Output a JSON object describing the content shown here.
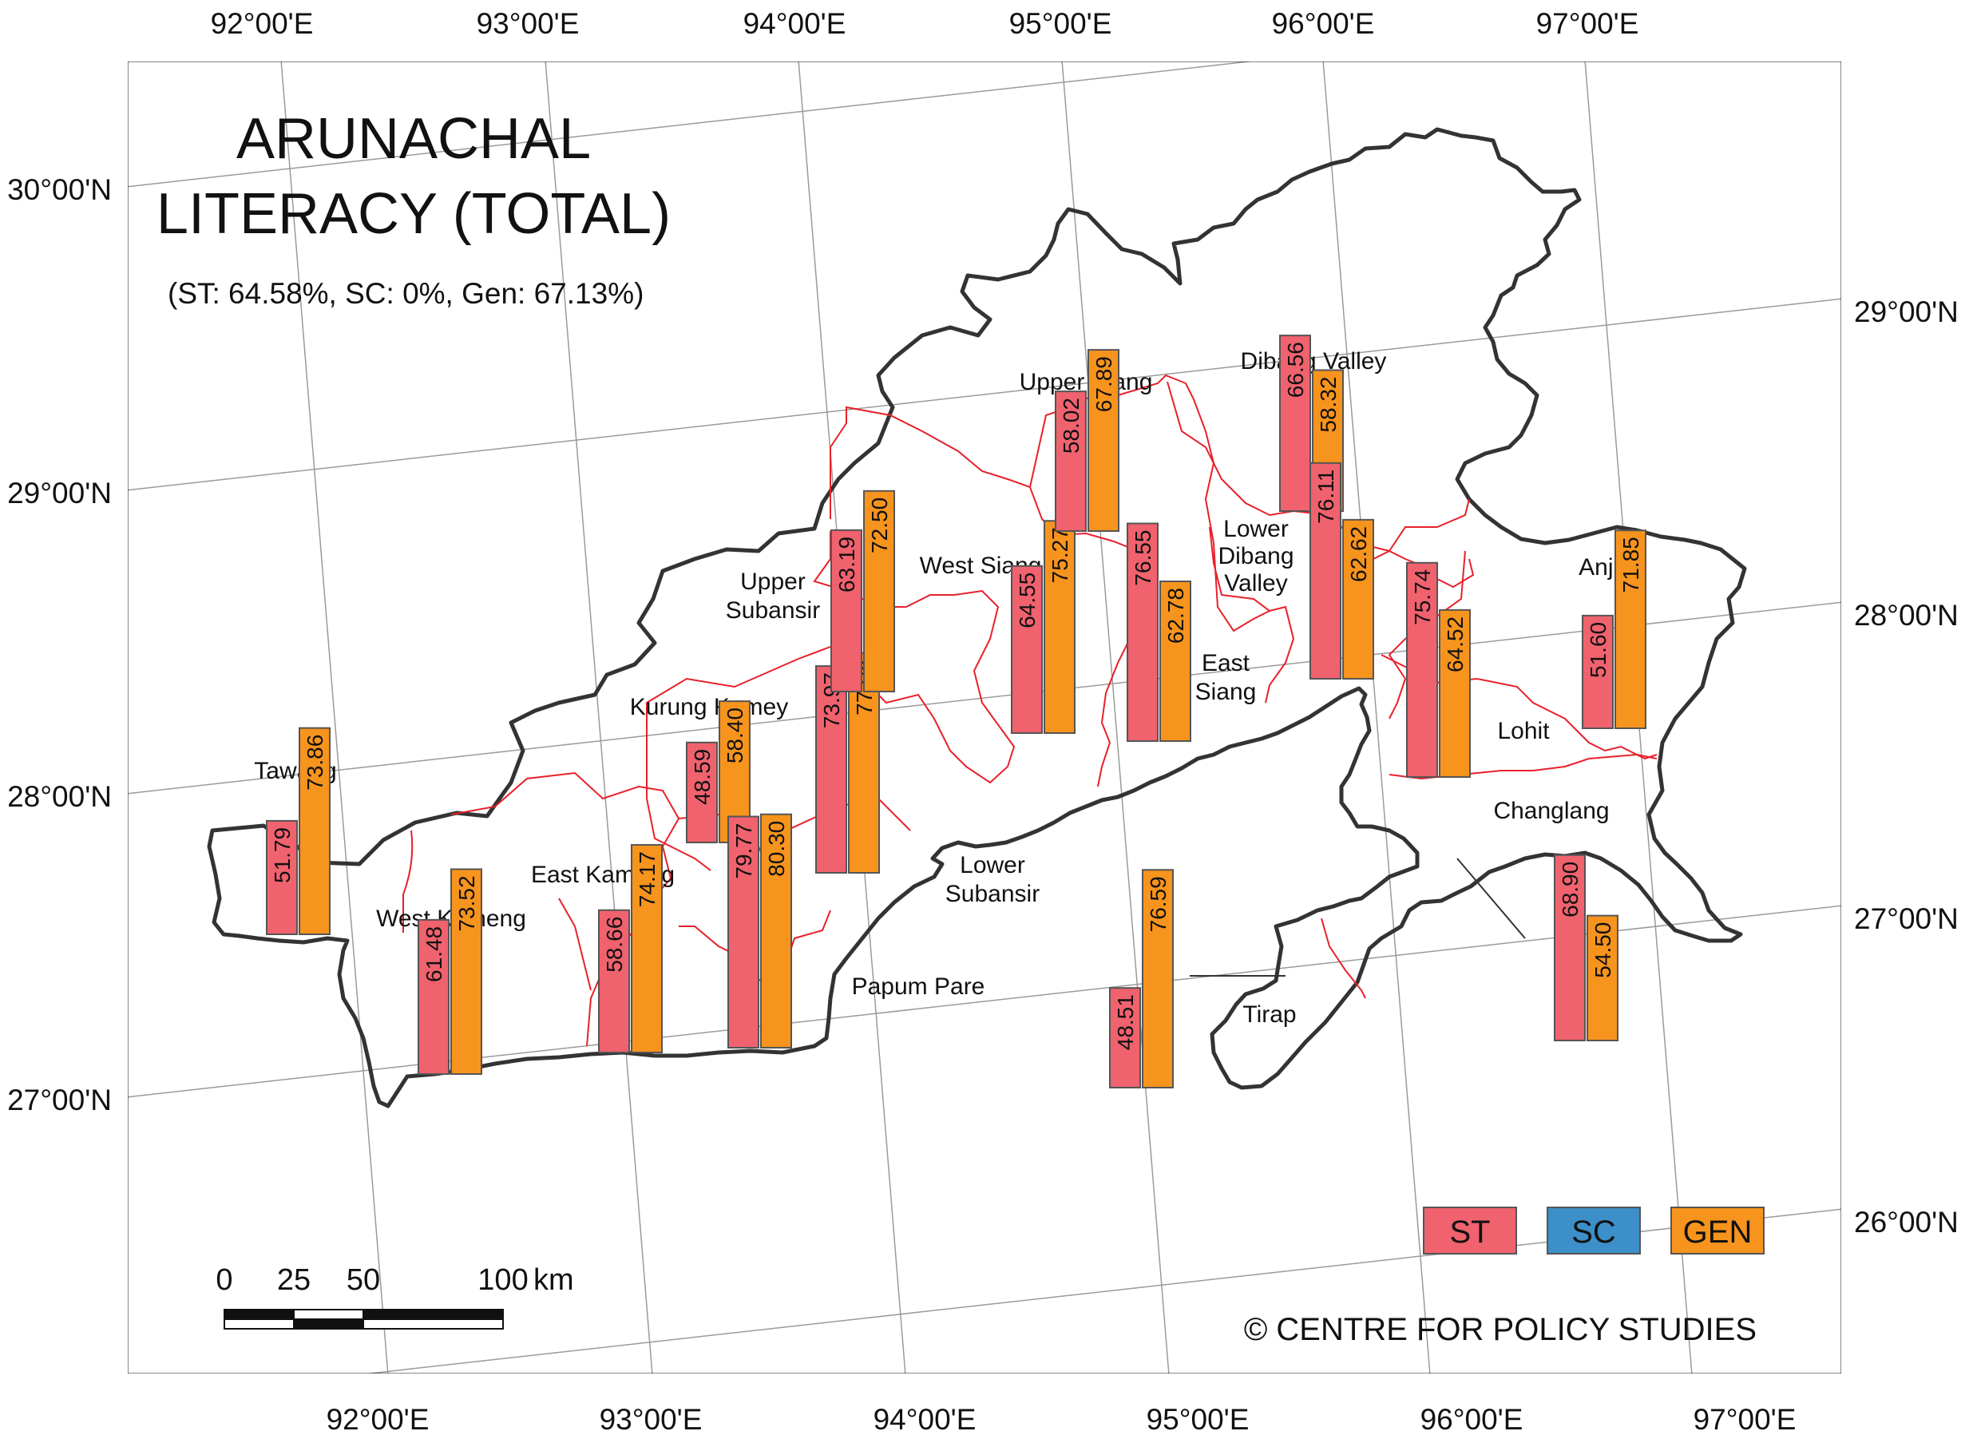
{
  "title": [
    "ARUNACHAL",
    "LITERACY (TOTAL)"
  ],
  "subtitle": "(ST: 64.58%, SC: 0%, Gen: 67.13%)",
  "colors": {
    "st": "#f0626e",
    "sc": "#3c8fc8",
    "gen": "#f7941d",
    "border": "#333333",
    "district_border": "#e8202a",
    "graticule": "#9a9a9a"
  },
  "longitude_labels_top": [
    "92°00'E",
    "93°00'E",
    "94°00'E",
    "95°00'E",
    "96°00'E",
    "97°00'E"
  ],
  "longitude_labels_bottom": [
    "92°00'E",
    "93°00'E",
    "94°00'E",
    "95°00'E",
    "96°00'E",
    "97°00'E"
  ],
  "latitude_labels_left": [
    "30°00'N",
    "29°00'N",
    "28°00'N",
    "27°00'N"
  ],
  "latitude_labels_right": [
    "29°00'N",
    "28°00'N",
    "27°00'N",
    "26°00'N"
  ],
  "districts": [
    {
      "name": "Tawang",
      "label": [
        "Tawang"
      ],
      "st": "51.79",
      "gen": "73.86"
    },
    {
      "name": "West Kameng",
      "label": [
        "West Kameng"
      ],
      "st": "61.48",
      "gen": "73.52"
    },
    {
      "name": "East Kameng",
      "label": [
        "East Kameng"
      ],
      "st": "58.66",
      "gen": "74.17"
    },
    {
      "name": "Kurung Kumey",
      "label": [
        "Kurung Kumey"
      ],
      "st": "48.59",
      "gen": "58.40"
    },
    {
      "name": "Papum Pare",
      "label": [
        "Papum Pare"
      ],
      "st": "79.77",
      "gen": "80.30"
    },
    {
      "name": "Lower Subansir",
      "label": [
        "Lower",
        "Subansir"
      ],
      "st": "73.97",
      "gen": "77.08"
    },
    {
      "name": "Upper Subansir",
      "label": [
        "Upper",
        "Subansir"
      ],
      "st": "63.19",
      "gen": "72.50"
    },
    {
      "name": "West Siang",
      "label": [
        "West Siang"
      ],
      "st": "64.55",
      "gen": "75.27"
    },
    {
      "name": "Upper Siang",
      "label": [
        "Upper Siang"
      ],
      "st": "58.02",
      "gen": "67.89"
    },
    {
      "name": "East Siang",
      "label": [
        "East",
        "Siang"
      ],
      "st": "76.55",
      "gen": "62.78"
    },
    {
      "name": "Dibang Valley",
      "label": [
        "Dibang Valley"
      ],
      "st": "66.56",
      "gen": "58.32"
    },
    {
      "name": "Lower Dibang Valley",
      "label": [
        "Lower",
        "Dibang",
        "Valley"
      ],
      "st": "76.11",
      "gen": "62.62"
    },
    {
      "name": "Lohit",
      "label": [
        "Lohit"
      ],
      "st": "75.74",
      "gen": "64.52"
    },
    {
      "name": "Anjaw",
      "label": [
        "Anjaw"
      ],
      "st": "51.60",
      "gen": "71.85"
    },
    {
      "name": "Changlang",
      "label": [
        "Changlang"
      ],
      "st": "68.90",
      "gen": "54.50"
    },
    {
      "name": "Tirap",
      "label": [
        "Tirap"
      ],
      "st": "48.51",
      "gen": "76.59"
    }
  ],
  "legend": {
    "st": "ST",
    "sc": "SC",
    "gen": "GEN"
  },
  "scale_bar": {
    "labels": [
      "0",
      "25",
      "50",
      "100"
    ],
    "unit": "km"
  },
  "credit": "© CENTRE FOR POLICY STUDIES"
}
